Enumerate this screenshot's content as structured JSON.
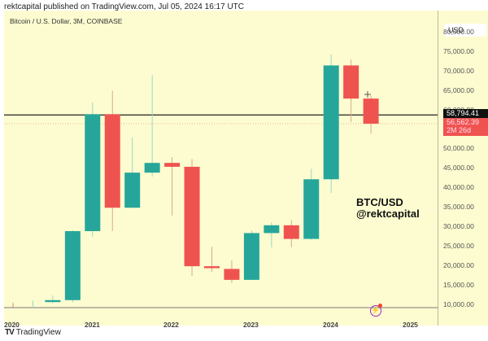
{
  "header": {
    "text": "rektcapital published on TradingView.com, Jul 05, 2024 16:17 UTC"
  },
  "symbol": {
    "text": "Bitcoin / U.S. Dollar, 3M, COINBASE"
  },
  "price_axis": {
    "currency": "USD",
    "ticks": [
      "80,000.00",
      "75,000.00",
      "70,000.00",
      "65,000.00",
      "60,000.00",
      "50,000.00",
      "45,000.00",
      "40,000.00",
      "35,000.00",
      "30,000.00",
      "25,000.00",
      "20,000.00",
      "15,000.00",
      "10,000.00"
    ],
    "horizontal_line_label": "58,794.41",
    "current_price_label": "56,562.39",
    "countdown_label": "2M 26d"
  },
  "time_axis": {
    "labels": [
      "2020",
      "2021",
      "2022",
      "2023",
      "2024",
      "2025"
    ]
  },
  "watermark": {
    "line1": "BTC/USD",
    "line2": "@rektcapital"
  },
  "footer": {
    "logo": "TV",
    "brand": "TradingView"
  },
  "colors": {
    "up": "#26a69a",
    "down": "#ef5350",
    "background": "#fcfcd0",
    "level_line": "#222222"
  },
  "chart_data": {
    "type": "candlestick",
    "title": "Bitcoin / U.S. Dollar, 3M, COINBASE",
    "xlabel": "",
    "ylabel": "USD",
    "ylim": [
      9000,
      82000
    ],
    "grid": false,
    "horizontal_line": 58794.41,
    "current_price": 56562.39,
    "categories": [
      "2020Q1",
      "2020Q2",
      "2020Q3",
      "2020Q4",
      "2021Q1",
      "2021Q2",
      "2021Q3",
      "2021Q4",
      "2022Q1",
      "2022Q2",
      "2022Q3",
      "2022Q4",
      "2023Q1",
      "2023Q2",
      "2023Q3",
      "2023Q4",
      "2024Q1",
      "2024Q2",
      "2024Q3"
    ],
    "series": [
      {
        "name": "open",
        "values": [
          10300,
          10200,
          10800,
          11300,
          29000,
          59000,
          35000,
          44000,
          46500,
          45500,
          20000,
          19300,
          16500,
          28500,
          30500,
          27000,
          42300,
          71500,
          63000
        ]
      },
      {
        "name": "high",
        "values": [
          10700,
          11200,
          12500,
          29200,
          62000,
          65000,
          53000,
          69000,
          48000,
          47500,
          25000,
          21500,
          29200,
          31300,
          31800,
          45000,
          74300,
          73000,
          63800
        ]
      },
      {
        "name": "low",
        "values": [
          9800,
          9900,
          10500,
          10700,
          27500,
          29000,
          35500,
          43000,
          33000,
          17500,
          18500,
          15700,
          16500,
          24800,
          24900,
          26800,
          38800,
          57000,
          54000
        ]
      },
      {
        "name": "close",
        "values": [
          10200,
          10800,
          11300,
          29000,
          59000,
          35000,
          44000,
          46500,
          45500,
          20000,
          19500,
          16500,
          28500,
          30500,
          27000,
          42300,
          71500,
          63000,
          56562
        ]
      }
    ]
  }
}
